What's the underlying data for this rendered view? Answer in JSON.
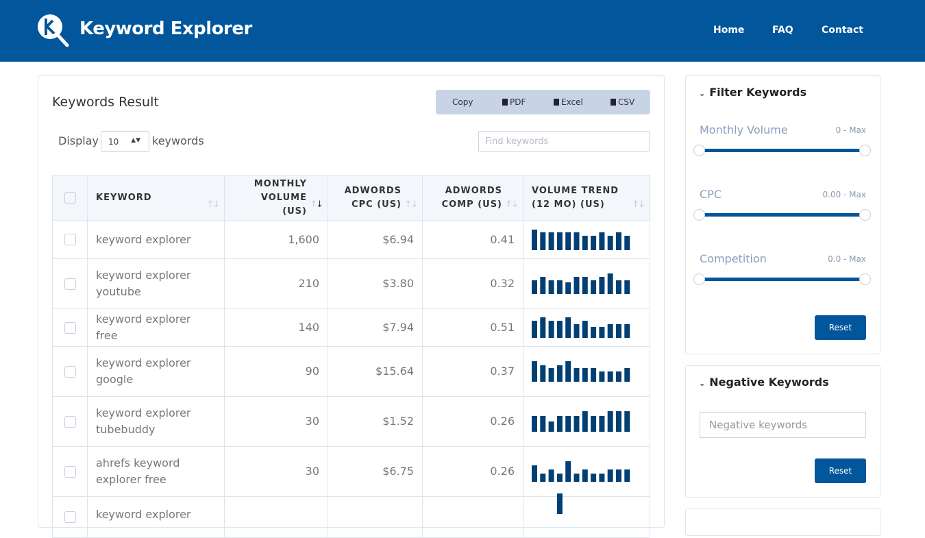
{
  "header": {
    "brand": "Keyword Explorer",
    "nav": [
      "Home",
      "FAQ",
      "Contact"
    ]
  },
  "main": {
    "title": "Keywords Result",
    "export": [
      "Copy",
      "PDF",
      "Excel",
      "CSV"
    ],
    "display_label": "Display",
    "display_value": "10",
    "display_suffix": "keywords",
    "search_placeholder": "Find keywords",
    "columns": [
      "KEYWORD",
      "MONTHLY VOLUME (US)",
      "ADWORDS CPC (US)",
      "ADWORDS COMP (US)",
      "VOLUME TREND (12 MO) (US)"
    ],
    "sort": {
      "column": "MONTHLY VOLUME (US)",
      "direction": "desc"
    },
    "rows": [
      {
        "keyword": "keyword explorer",
        "volume": "1,600",
        "cpc": "$6.94",
        "comp": "0.41",
        "trend": [
          30,
          26,
          26,
          26,
          26,
          26,
          21,
          21,
          26,
          21,
          26,
          21
        ]
      },
      {
        "keyword": "keyword explorer youtube",
        "volume": "210",
        "cpc": "$3.80",
        "comp": "0.32",
        "trend": [
          20,
          25,
          20,
          20,
          17,
          25,
          25,
          20,
          25,
          30,
          20,
          20
        ]
      },
      {
        "keyword": "keyword explorer free",
        "volume": "140",
        "cpc": "$7.94",
        "comp": "0.51",
        "trend": [
          25,
          30,
          25,
          25,
          30,
          20,
          25,
          16,
          16,
          20,
          20,
          20
        ]
      },
      {
        "keyword": "keyword explorer google",
        "volume": "90",
        "cpc": "$15.64",
        "comp": "0.37",
        "trend": [
          30,
          24,
          20,
          24,
          30,
          20,
          20,
          20,
          15,
          15,
          15,
          20
        ]
      },
      {
        "keyword": "keyword explorer tubebuddy",
        "volume": "30",
        "cpc": "$1.52",
        "comp": "0.26",
        "trend": [
          23,
          23,
          15,
          23,
          23,
          23,
          30,
          23,
          23,
          30,
          30,
          30
        ]
      },
      {
        "keyword": "ahrefs keyword explorer free",
        "volume": "30",
        "cpc": "$6.75",
        "comp": "0.26",
        "trend": [
          24,
          12,
          18,
          12,
          30,
          12,
          18,
          12,
          12,
          18,
          18,
          18
        ]
      },
      {
        "keyword": "keyword explorer",
        "volume": "",
        "cpc": "",
        "comp": "",
        "trend": [
          0,
          0,
          0,
          30,
          0,
          0,
          0,
          0,
          0,
          0,
          0,
          0
        ]
      }
    ]
  },
  "filter": {
    "title": "Filter Keywords",
    "sliders": [
      {
        "label": "Monthly Volume",
        "range": "0 - Max",
        "min": 0,
        "max": "Max"
      },
      {
        "label": "CPC",
        "range": "0.00 - Max",
        "min": 0,
        "max": "Max"
      },
      {
        "label": "Competition",
        "range": "0.0 - Max",
        "min": 0,
        "max": "Max"
      }
    ],
    "reset": "Reset"
  },
  "negative": {
    "title": "Negative Keywords",
    "placeholder": "Negative keywords",
    "reset": "Reset"
  },
  "colors": {
    "brand": "#02569b",
    "bars": "#023f73",
    "export_bg": "#c8d4e6"
  }
}
